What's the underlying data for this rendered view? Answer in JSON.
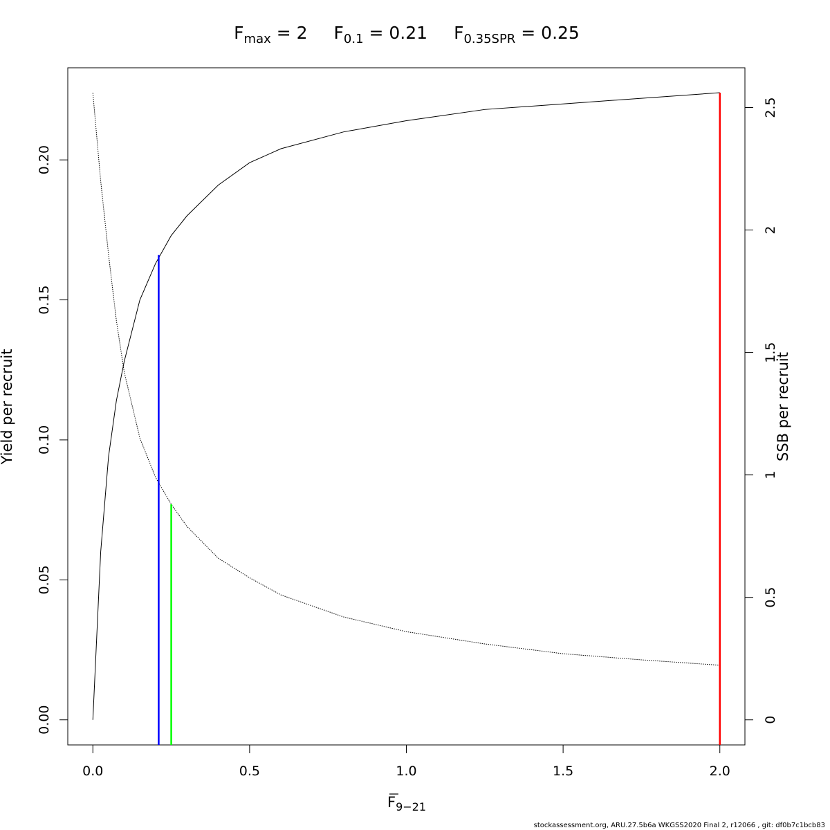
{
  "chart_data": {
    "type": "line",
    "title": [
      {
        "base": "F",
        "sub": "max",
        "text": " = 2"
      },
      {
        "base": "F",
        "sub": "0.1",
        "text": " = 0.21"
      },
      {
        "base": "F",
        "sub": "0.35SPR",
        "text": " = 0.25"
      }
    ],
    "xlabel": {
      "base": "F",
      "sub": "9−21"
    },
    "ylabel": "Yield per recruit",
    "y2label": "SSB per recruit",
    "footer": "stockassessment.org, ARU.27.5b6a  WKGSS2020 Final  2, r12066 , git: df0b7c1bcb83",
    "x": [
      0,
      0.025,
      0.05,
      0.075,
      0.1,
      0.15,
      0.2,
      0.25,
      0.3,
      0.4,
      0.5,
      0.6,
      0.8,
      1.0,
      1.25,
      1.5,
      1.75,
      2.0
    ],
    "series": [
      {
        "name": "Yield per recruit",
        "color": "#000000",
        "dash": false,
        "values": [
          0,
          0.06,
          0.094,
          0.114,
          0.128,
          0.15,
          0.163,
          0.173,
          0.18,
          0.191,
          0.199,
          0.204,
          0.21,
          0.214,
          0.218,
          0.22,
          0.222,
          0.224
        ]
      },
      {
        "name": "SSB per recruit",
        "color": "#000000",
        "dash": true,
        "axis": "y2",
        "values": [
          2.56,
          2.2,
          1.9,
          1.63,
          1.42,
          1.15,
          0.99,
          0.88,
          0.79,
          0.66,
          0.58,
          0.51,
          0.42,
          0.36,
          0.31,
          0.27,
          0.245,
          0.223
        ]
      }
    ],
    "ref_lines": [
      {
        "x": 0.21,
        "value": 0.166,
        "color": "#0000ff"
      },
      {
        "x": 0.25,
        "value": 0.88,
        "color": "#00ff00",
        "axis": "y2"
      },
      {
        "x": 2.0,
        "value": 0.224,
        "color": "#ff0000"
      }
    ],
    "xlim": [
      -0.08,
      2.08
    ],
    "ylim": [
      -0.00896,
      0.2329
    ],
    "y2lim": [
      -0.1024,
      2.6624
    ],
    "xticks": [
      {
        "value": 0,
        "label": "0.0"
      },
      0.5,
      {
        "value": 1,
        "label": "1.0"
      },
      1.5,
      {
        "value": 2,
        "label": "2.0"
      }
    ],
    "yticks": [
      {
        "value": 0,
        "label": "0.00"
      },
      {
        "value": 0.05,
        "label": "0.05"
      },
      {
        "value": 0.1,
        "label": "0.10"
      },
      {
        "value": 0.15,
        "label": "0.15"
      },
      {
        "value": 0.2,
        "label": "0.20"
      }
    ],
    "y2ticks": [
      0,
      0.5,
      1,
      1.5,
      2,
      2.5
    ]
  }
}
